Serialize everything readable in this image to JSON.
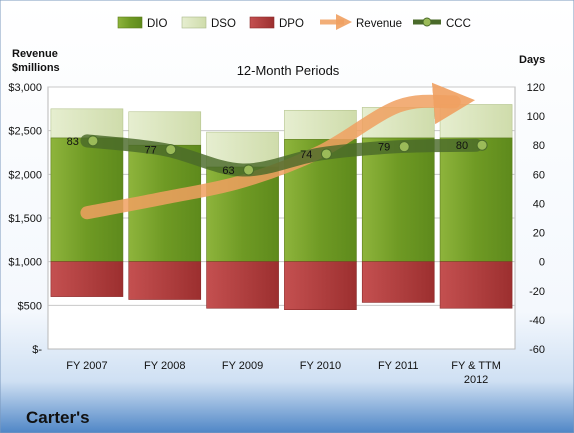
{
  "chart_data": {
    "type": "bar",
    "title": "12-Month Periods",
    "company": "Carter's",
    "categories": [
      "FY 2007",
      "FY 2008",
      "FY 2009",
      "FY 2010",
      "FY 2011",
      "FY & TTM 2012"
    ],
    "category_lines": [
      [
        "FY 2007"
      ],
      [
        "FY 2008"
      ],
      [
        "FY 2009"
      ],
      [
        "FY 2010"
      ],
      [
        "FY 2011"
      ],
      [
        "FY & TTM",
        "2012"
      ]
    ],
    "left_axis": {
      "label_lines": [
        "Revenue",
        "$millions"
      ],
      "range": [
        0,
        3000
      ],
      "ticks": [
        0,
        500,
        1000,
        1500,
        2000,
        2500,
        3000
      ],
      "tick_labels": [
        "$-",
        "$500",
        "$1,000",
        "$1,500",
        "$2,000",
        "$2,500",
        "$3,000"
      ]
    },
    "right_axis": {
      "label": "Days",
      "range": [
        -60,
        120
      ],
      "ticks": [
        -60,
        -40,
        -20,
        0,
        20,
        40,
        60,
        80,
        100,
        120
      ],
      "tick_labels": [
        "-60",
        "-40",
        "-20",
        "0",
        "20",
        "40",
        "60",
        "80",
        "100",
        "120"
      ]
    },
    "grid": true,
    "legend_position": "top",
    "series": [
      {
        "name": "DIO",
        "kind": "stacked-bar",
        "axis": "right",
        "color": "#6b8e23",
        "values": [
          85,
          80,
          65,
          84,
          85,
          85
        ]
      },
      {
        "name": "DSO",
        "kind": "stacked-bar",
        "axis": "right",
        "color": "#d8e4bc",
        "values": [
          20,
          23,
          24,
          20,
          21,
          23
        ]
      },
      {
        "name": "DPO",
        "kind": "negative-bar",
        "axis": "right",
        "color": "#b03a3a",
        "values": [
          -24,
          -26,
          -32,
          -33,
          -28,
          -32
        ]
      },
      {
        "name": "Revenue",
        "kind": "arrow-line",
        "axis": "left",
        "color": "#f0a060",
        "values": [
          1560,
          1730,
          1920,
          2260,
          2780,
          2850
        ]
      },
      {
        "name": "CCC",
        "kind": "line-markers",
        "axis": "right",
        "color": "#4a6a2a",
        "values": [
          83,
          77,
          63,
          74,
          79,
          80
        ],
        "labels": [
          "83",
          "77",
          "63",
          "74",
          "79",
          "80"
        ]
      }
    ]
  }
}
